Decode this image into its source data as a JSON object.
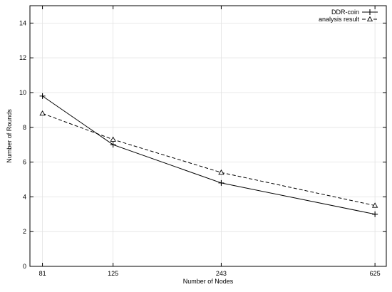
{
  "chart_data": {
    "type": "line",
    "title": "",
    "xlabel": "Number of Nodes",
    "ylabel": "Number of Rounds",
    "categories": [
      "81",
      "125",
      "243",
      "625"
    ],
    "x": [
      81,
      125,
      243,
      625
    ],
    "x_scale": "log",
    "xlim": [
      75,
      670
    ],
    "ylim": [
      0,
      15
    ],
    "yticks": [
      "0",
      "2",
      "4",
      "6",
      "8",
      "10",
      "12",
      "14"
    ],
    "grid": true,
    "legend": "top-right",
    "series": [
      {
        "name": "DDR-coin",
        "values": [
          9.8,
          7.0,
          4.8,
          3.0
        ],
        "line_style": "solid",
        "marker": "plus",
        "color": "#000000"
      },
      {
        "name": "analysis result",
        "values": [
          8.8,
          7.3,
          5.4,
          3.5
        ],
        "line_style": "dashed",
        "marker": "triangle",
        "color": "#000000"
      }
    ]
  }
}
